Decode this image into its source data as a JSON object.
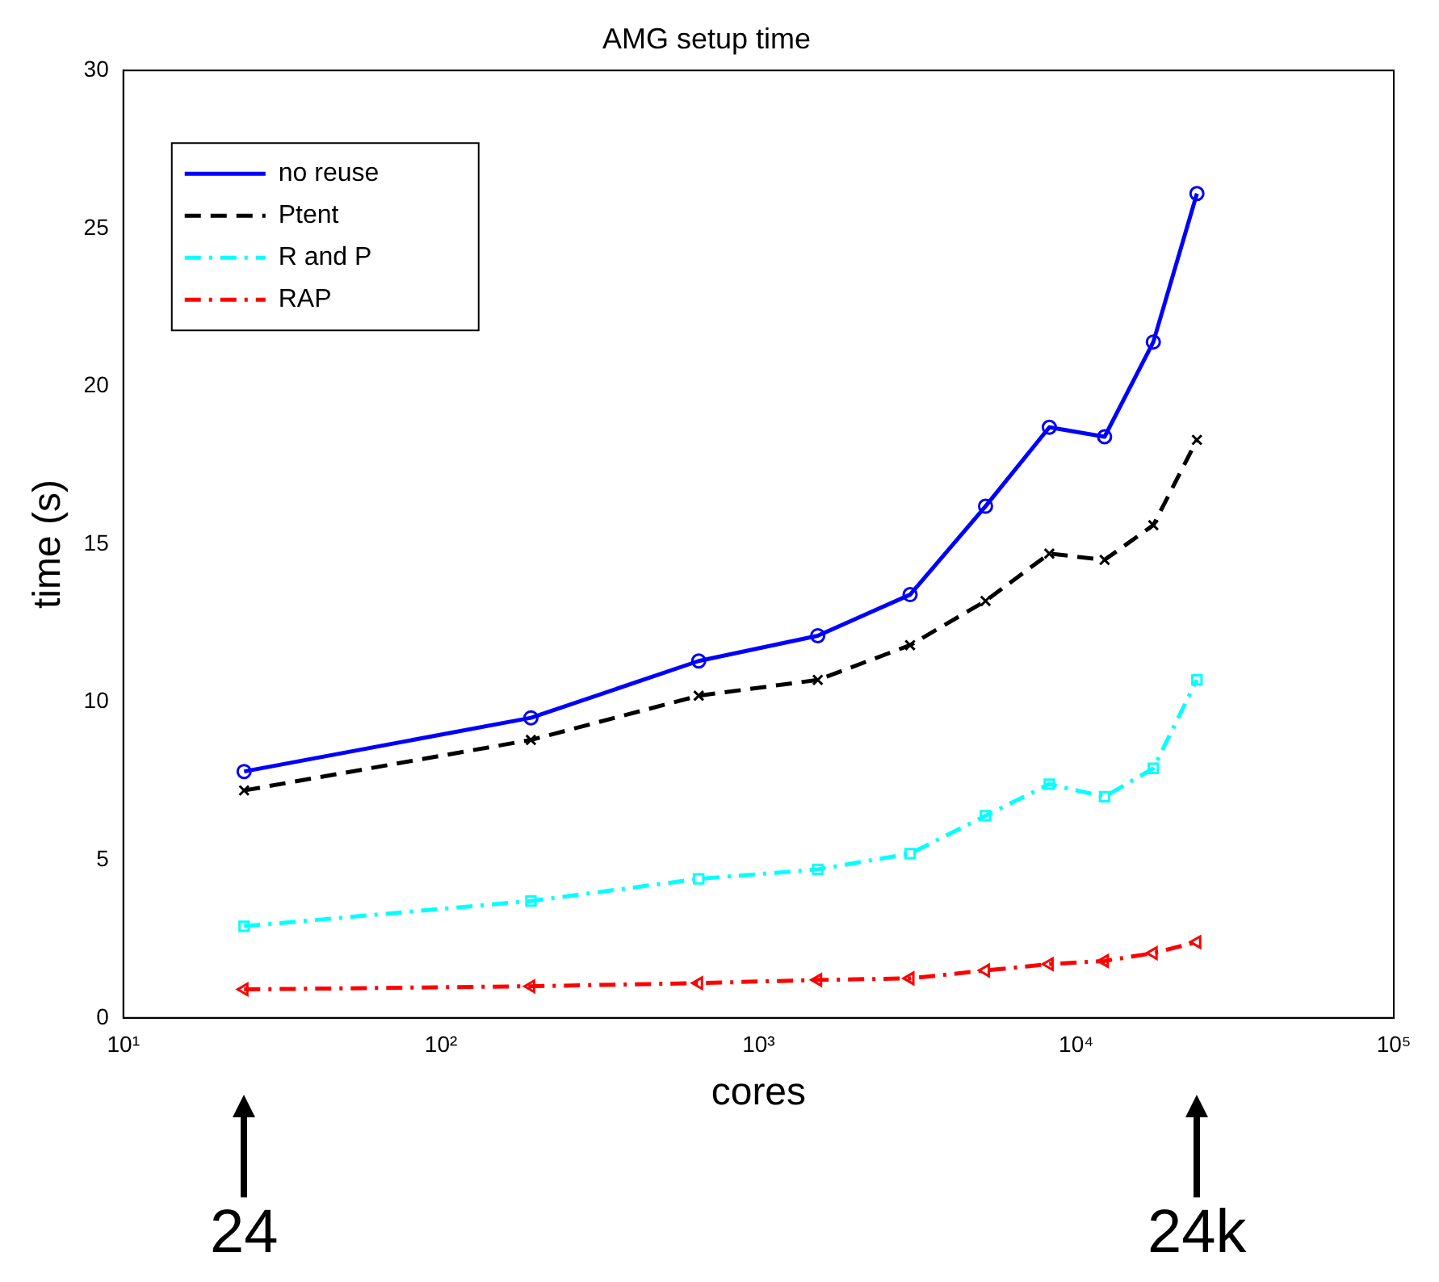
{
  "chart_data": {
    "type": "line",
    "title": "AMG setup time",
    "xlabel": "cores",
    "ylabel": "time (s)",
    "log": "x",
    "xlim": [
      10,
      100000
    ],
    "xticks": [
      {
        "value": 10,
        "label": "10¹"
      },
      {
        "value": 100,
        "label": "10²"
      },
      {
        "value": 1000,
        "label": "10³"
      },
      {
        "value": 10000,
        "label": "10⁴"
      },
      {
        "value": 100000,
        "label": "10⁵"
      }
    ],
    "ylim": [
      0,
      30
    ],
    "yticks": [
      0,
      5,
      10,
      15,
      20,
      25,
      30
    ],
    "grid": false,
    "legend": "top left",
    "x": [
      24,
      192,
      648,
      1536,
      3000,
      5184,
      8232,
      12288,
      17496,
      24000
    ],
    "series": [
      {
        "name": "no reuse",
        "color": "#0000ff",
        "marker": "circle",
        "line_style": "solid",
        "values": [
          7.8,
          9.5,
          11.3,
          12.1,
          13.4,
          16.2,
          18.7,
          18.4,
          21.4,
          26.1
        ]
      },
      {
        "name": "Ptent",
        "color": "#000000",
        "marker": "cross",
        "line_style": "dashed",
        "values": [
          7.2,
          8.8,
          10.2,
          10.7,
          11.8,
          13.2,
          14.7,
          14.5,
          15.6,
          18.3
        ]
      },
      {
        "name": "R and P",
        "color": "#00ffff",
        "marker": "square",
        "line_style": "dashdot",
        "values": [
          2.9,
          3.7,
          4.4,
          4.7,
          5.2,
          6.4,
          7.4,
          7.0,
          7.9,
          10.7
        ]
      },
      {
        "name": "RAP",
        "color": "#ff0000",
        "marker": "triangle",
        "line_style": "dashdot",
        "values": [
          0.9,
          1.0,
          1.1,
          1.2,
          1.25,
          1.5,
          1.7,
          1.8,
          2.05,
          2.4
        ]
      }
    ],
    "annotations": [
      "24",
      "24k"
    ]
  }
}
